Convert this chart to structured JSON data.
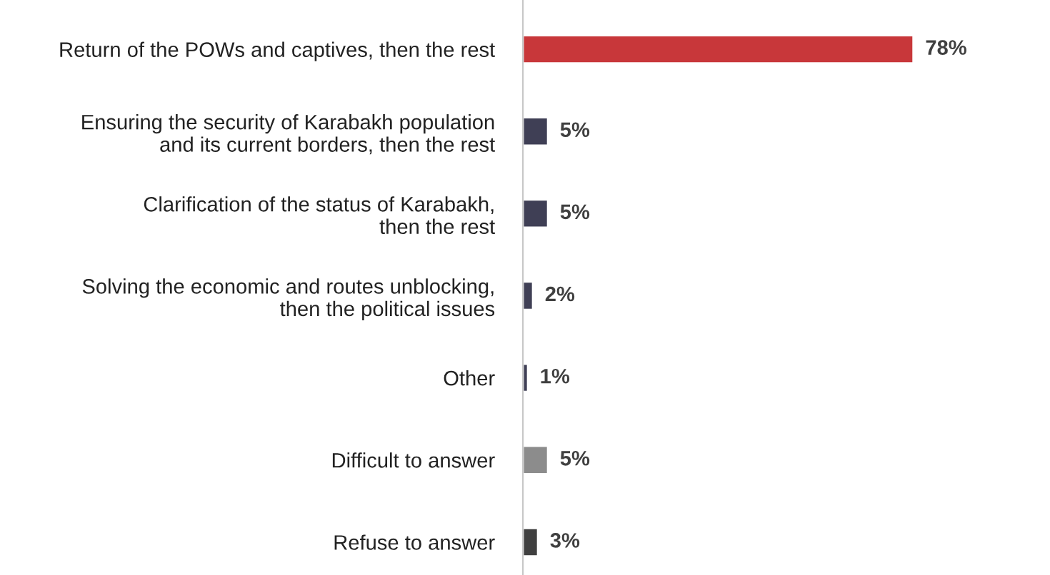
{
  "chart_data": {
    "type": "bar",
    "orientation": "horizontal",
    "categories": [
      "Return of the POWs and captives, then the rest",
      "Ensuring the security of Karabakh population\nand its current borders, then the rest",
      "Clarification of the status of Karabakh,\nthen the rest",
      "Solving the economic and routes unblocking,\nthen the political issues",
      "Other",
      "Difficult to answer",
      "Refuse to answer"
    ],
    "values": [
      78,
      5,
      5,
      2,
      1,
      5,
      3
    ],
    "colors": [
      "#c8373a",
      "#3f3f55",
      "#3f3f55",
      "#3f3f55",
      "#3f3f55",
      "#8c8c8c",
      "#404040"
    ],
    "value_labels": [
      "78%",
      "5%",
      "5%",
      "2%",
      "1%",
      "5%",
      "3%"
    ],
    "grid": false,
    "legend": false
  }
}
